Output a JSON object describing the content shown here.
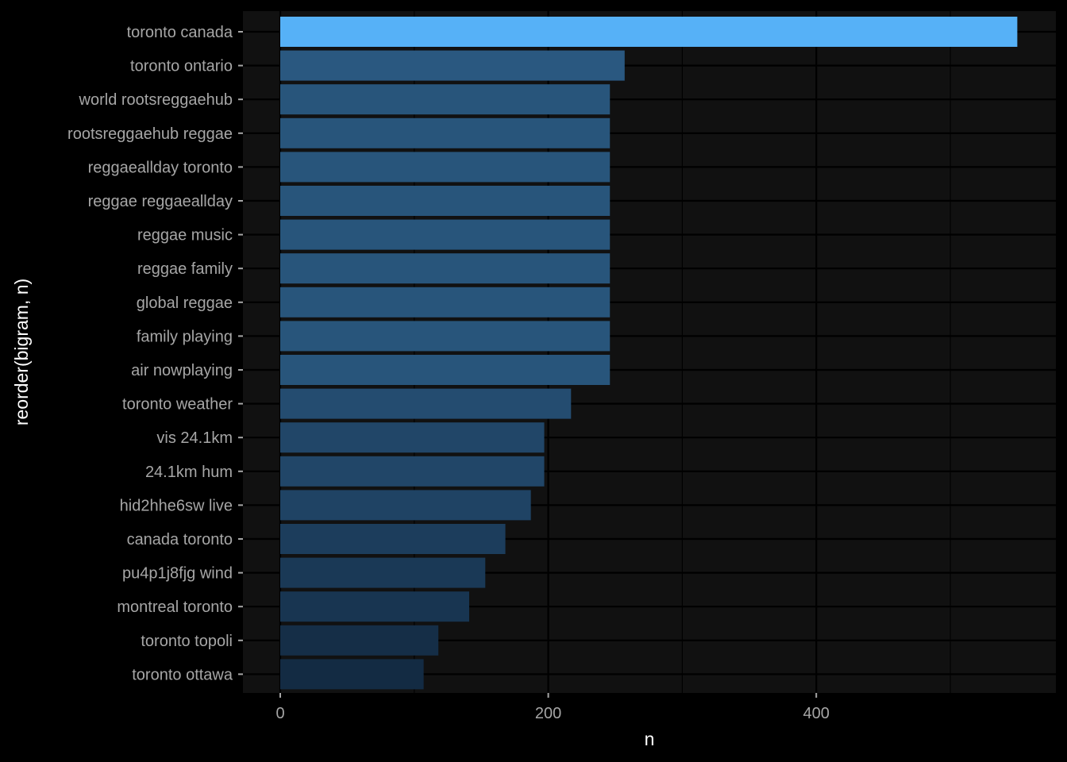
{
  "chart_data": {
    "type": "bar",
    "orientation": "horizontal",
    "xlabel": "n",
    "ylabel": "reorder(bigram, n)",
    "xlim": [
      0,
      575
    ],
    "x_ticks": [
      0,
      200,
      400
    ],
    "grid": true,
    "legend": "none",
    "categories": [
      "toronto canada",
      "toronto ontario",
      "world rootsreggaehub",
      "rootsreggaehub reggae",
      "reggaeallday toronto",
      "reggae reggaeallday",
      "reggae music",
      "reggae family",
      "global reggae",
      "family playing",
      "air nowplaying",
      "toronto weather",
      "vis 24.1km",
      "24.1km hum",
      "hid2hhe6sw live",
      "canada toronto",
      "pu4p1j8fjg wind",
      "montreal toronto",
      "toronto topoli",
      "toronto ottawa"
    ],
    "values": [
      550,
      257,
      246,
      246,
      246,
      246,
      246,
      246,
      246,
      246,
      246,
      217,
      197,
      197,
      187,
      168,
      153,
      141,
      118,
      107
    ],
    "colors": {
      "background": "#000000",
      "panel": "#111111",
      "grid": "#000000",
      "tick_label": "#a6a6a6",
      "axis_title": "#ffffff",
      "bar_low": "#132b43",
      "bar_high": "#56b1f7"
    }
  }
}
